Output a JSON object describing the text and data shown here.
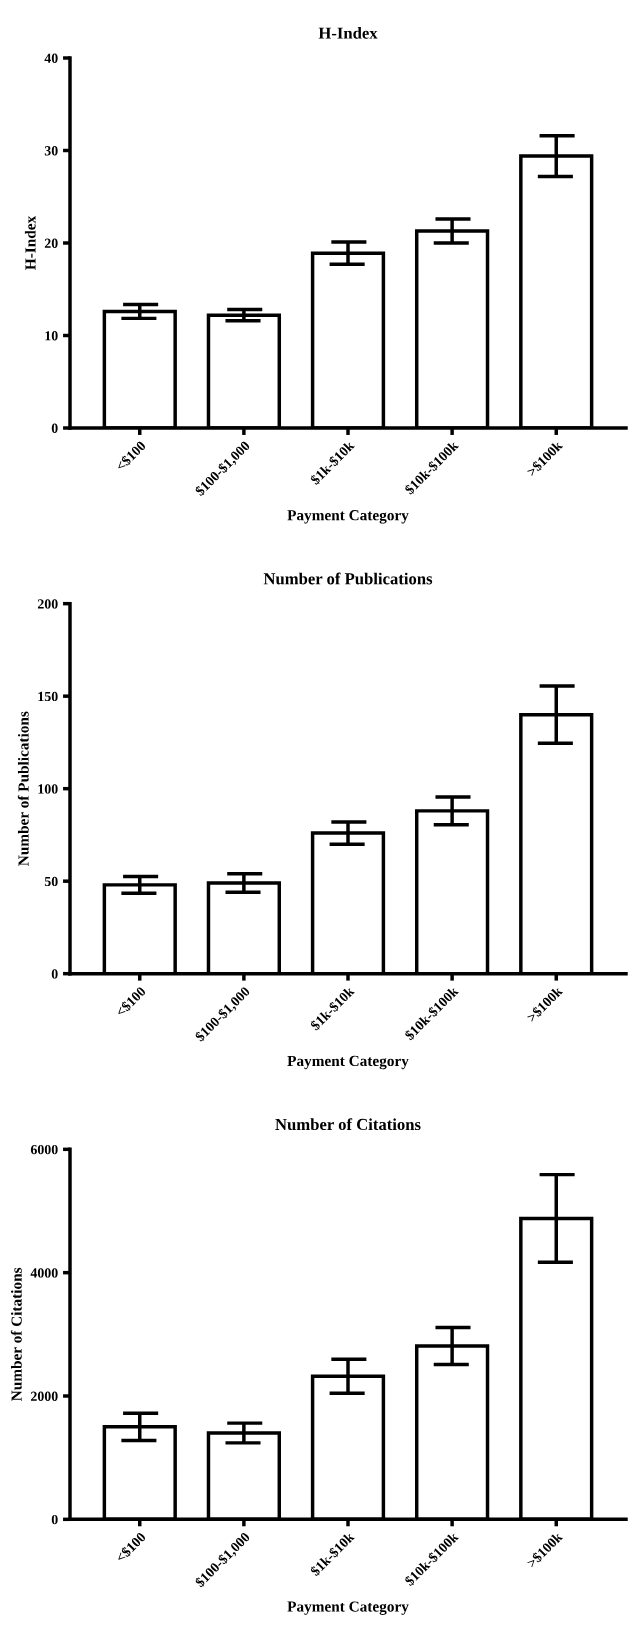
{
  "chart_data": [
    {
      "type": "bar",
      "title": "H-Index",
      "xlabel": "Payment Category",
      "ylabel": "H-Index",
      "categories": [
        "<$100",
        "$100-$1,000",
        "$1k-$10k",
        "$10k-$100k",
        ">$100k"
      ],
      "values": [
        12.6,
        12.2,
        18.9,
        21.3,
        29.4
      ],
      "errors": [
        0.75,
        0.6,
        1.2,
        1.3,
        2.2
      ],
      "color": "#ffffff",
      "ylim": [
        0,
        40
      ],
      "yticks": [
        0,
        10,
        20,
        30,
        40
      ],
      "grid": false
    },
    {
      "type": "bar",
      "title": "Number of Publications",
      "xlabel": "Payment Category",
      "ylabel": "Number of Publications",
      "categories": [
        "<$100",
        "$100-$1,000",
        "$1k-$10k",
        "$10k-$100k",
        ">$100k"
      ],
      "values": [
        48,
        49,
        76,
        88,
        140
      ],
      "errors": [
        4.5,
        5,
        6,
        7.5,
        15.5
      ],
      "color": "#ffffff",
      "ylim": [
        0,
        200
      ],
      "yticks": [
        0,
        50,
        100,
        150,
        200
      ],
      "grid": false
    },
    {
      "type": "bar",
      "title": "Number of Citations",
      "xlabel": "Payment Category",
      "ylabel": "Number of Citations",
      "categories": [
        "<$100",
        "$100-$1,000",
        "$1k-$10k",
        "$10k-$100k",
        ">$100k"
      ],
      "values": [
        1500,
        1400,
        2320,
        2810,
        4880
      ],
      "errors": [
        220,
        160,
        275,
        300,
        710
      ],
      "color": "#ffffff",
      "ylim": [
        0,
        6000
      ],
      "yticks": [
        0,
        2000,
        4000,
        6000
      ],
      "grid": false
    }
  ]
}
